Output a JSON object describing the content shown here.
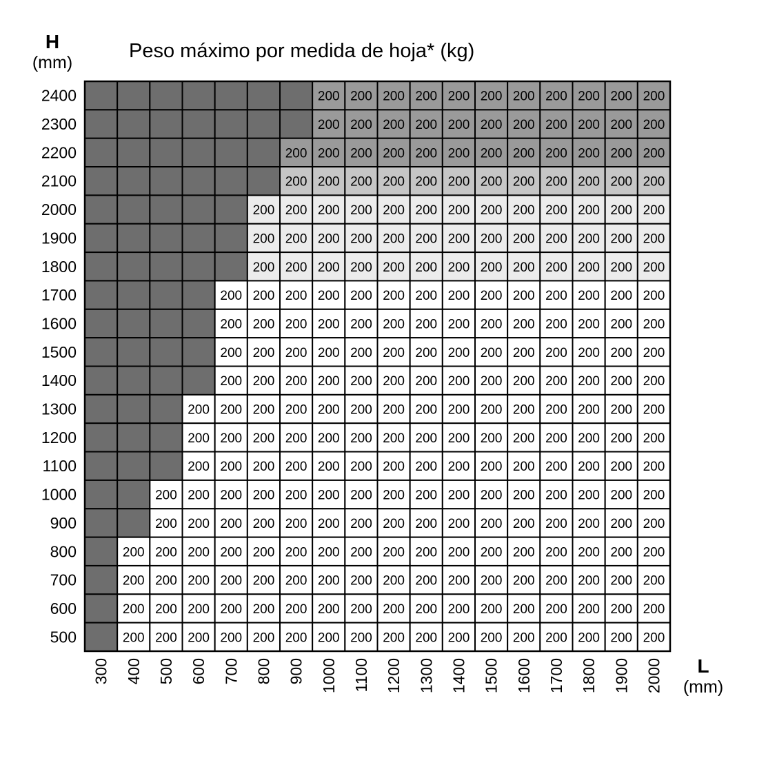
{
  "chart_data": {
    "type": "heatmap",
    "title": "Peso máximo por medida de hoja* (kg)",
    "ylabel": "H",
    "yunit": "(mm)",
    "xlabel": "L",
    "xunit": "(mm)",
    "columns": [
      300,
      400,
      500,
      600,
      700,
      800,
      900,
      1000,
      1100,
      1200,
      1300,
      1400,
      1500,
      1600,
      1700,
      1800,
      1900,
      2000
    ],
    "rows": [
      2400,
      2300,
      2200,
      2100,
      2000,
      1900,
      1800,
      1700,
      1600,
      1500,
      1400,
      1300,
      1200,
      1100,
      1000,
      900,
      800,
      700,
      600,
      500
    ],
    "unavailable_leading_columns": [
      7,
      7,
      6,
      6,
      5,
      5,
      5,
      4,
      4,
      4,
      4,
      3,
      3,
      3,
      2,
      2,
      1,
      1,
      1,
      1
    ],
    "value": 200,
    "row_shading": [
      "#9a9a9a",
      "#9a9a9a",
      "#9a9a9a",
      "#c6c6c6",
      "#ececec",
      "#ececec",
      "#ececec",
      "#ffffff",
      "#ffffff",
      "#ffffff",
      "#ffffff",
      "#ffffff",
      "#ffffff",
      "#ffffff",
      "#ffffff",
      "#ffffff",
      "#ffffff",
      "#ffffff",
      "#ffffff",
      "#ffffff"
    ],
    "unavailable_color": "#6e6e6e",
    "grid": true
  }
}
